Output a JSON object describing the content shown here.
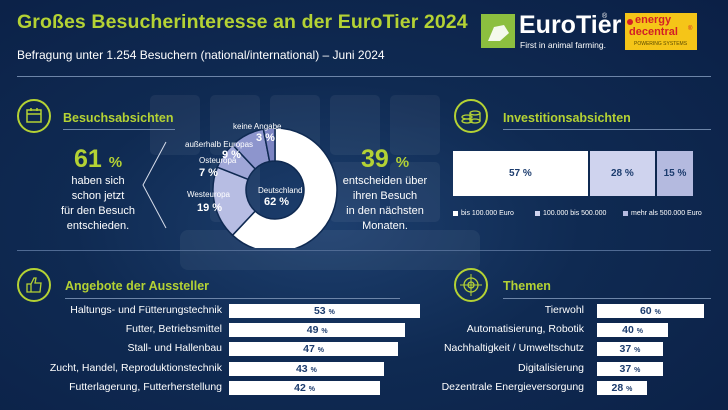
{
  "header": {
    "title": "Großes Besucherinteresse an der EuroTier 2024",
    "subtitle": "Befragung unter 1.254 Besuchern (national/international) – Juni 2024"
  },
  "logos": {
    "eurotier_name": "EuroTier",
    "eurotier_reg": "®",
    "eurotier_tagline": "First in animal farming.",
    "energy_line1": "energy",
    "energy_line2": "decentral",
    "energy_reg": "®",
    "energy_tagline": "POWERING SYSTEMS"
  },
  "sections": {
    "besuch": {
      "title": "Besuchsabsichten",
      "icon": "calendar-icon"
    },
    "invest": {
      "title": "Investitionsabsichten",
      "icon": "coins-icon"
    },
    "angebote": {
      "title": "Angebote der Aussteller",
      "icon": "thumbs-up-icon"
    },
    "themen": {
      "title": "Themen",
      "icon": "target-icon"
    }
  },
  "besuch": {
    "left_value": "61",
    "left_unit": "%",
    "left_text": [
      "haben sich",
      "schon jetzt",
      "für den Besuch",
      "entschieden."
    ],
    "right_value": "39",
    "right_unit": "%",
    "right_text": [
      "entscheiden über",
      "ihren Besuch",
      "in den nächsten",
      "Monaten."
    ]
  },
  "colors": {
    "accent": "#b4d234",
    "background": "#0f2a52",
    "bar_text": "#1c3c6e",
    "donut": [
      "#ffffff",
      "#b7bde3",
      "#9fa6d7",
      "#8d95cd",
      "#7c84c2"
    ],
    "invest": [
      "#ffffff",
      "#cfd3ee",
      "#b4badf"
    ]
  },
  "chart_data": [
    {
      "type": "pie",
      "title": "",
      "categories": [
        "Deutschland",
        "Westeuropa",
        "Osteuropa",
        "außerhalb Europas",
        "keine Angabe"
      ],
      "values": [
        62,
        19,
        7,
        9,
        3
      ],
      "value_labels": [
        "62 %",
        "19 %",
        "7 %",
        "9 %",
        "3 %"
      ],
      "grid": false,
      "legend": "none"
    },
    {
      "type": "bar",
      "title": "",
      "orientation": "stacked-horizontal",
      "categories": [
        "bis 100.000 Euro",
        "100.000 bis 500.000",
        "mehr als 500.000 Euro"
      ],
      "values": [
        57,
        28,
        15
      ],
      "value_labels": [
        "57 %",
        "28 %",
        "15 %"
      ],
      "grid": false,
      "legend": "bottom"
    },
    {
      "type": "bar",
      "title": "",
      "orientation": "horizontal",
      "categories": [
        "Haltungs- und Fütterungstechnik",
        "Futter, Betriebsmittel",
        "Stall- und Hallenbau",
        "Zucht, Handel, Reproduktionstechnik",
        "Futterlagerung, Futterherstellung"
      ],
      "values": [
        53,
        49,
        47,
        43,
        42
      ],
      "value_labels": [
        "53 %",
        "49 %",
        "47 %",
        "43 %",
        "42 %"
      ],
      "xlim": [
        0,
        60
      ],
      "grid": false,
      "legend": "none"
    },
    {
      "type": "bar",
      "title": "",
      "orientation": "horizontal",
      "categories": [
        "Tierwohl",
        "Automatisierung, Robotik",
        "Nachhaltigkeit / Umweltschutz",
        "Digitalisierung",
        "Dezentrale Energieversorgung"
      ],
      "values": [
        60,
        40,
        37,
        37,
        28
      ],
      "value_labels": [
        "60 %",
        "40 %",
        "37 %",
        "37 %",
        "28 %"
      ],
      "xlim": [
        0,
        60
      ],
      "grid": false,
      "legend": "none"
    }
  ]
}
